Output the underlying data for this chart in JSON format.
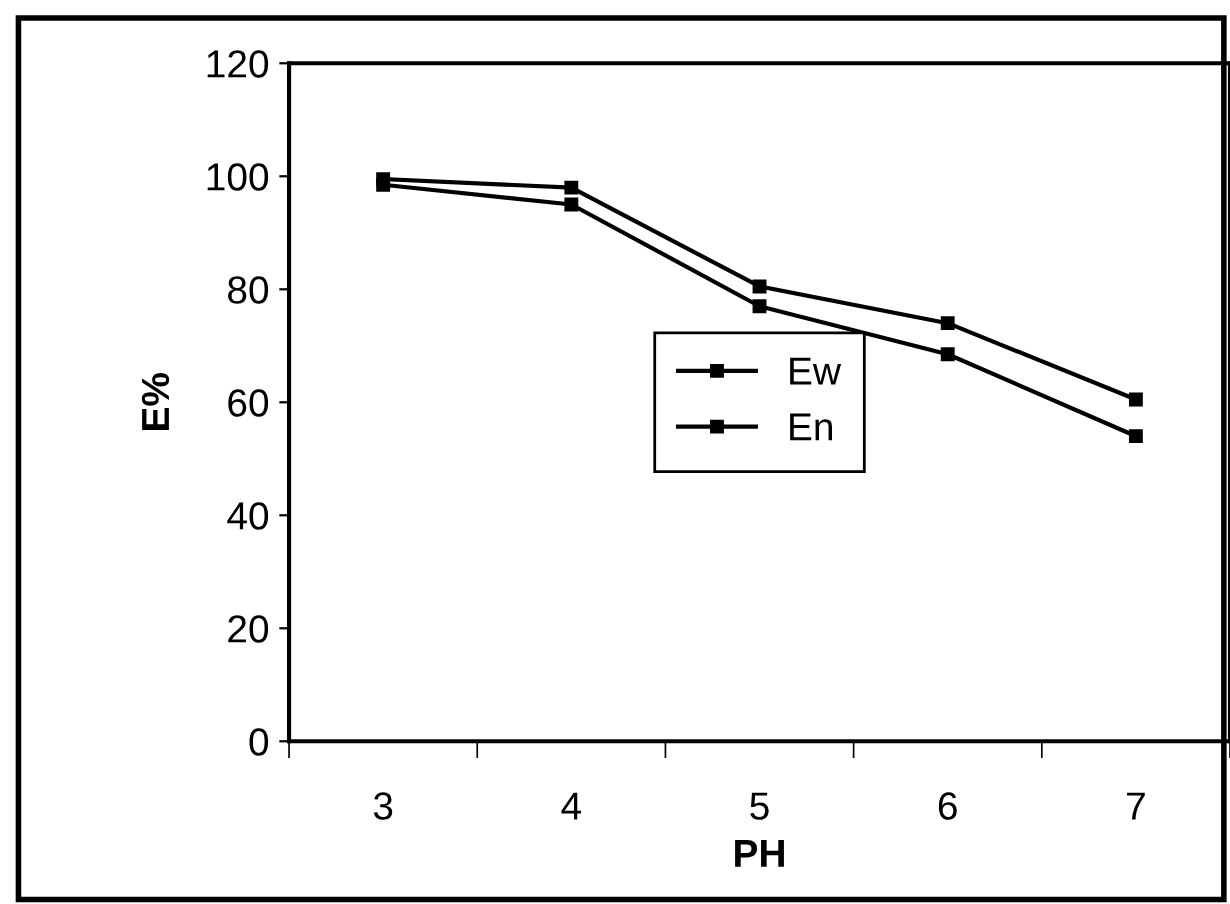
{
  "chart_data": {
    "type": "line",
    "xlabel": "PH",
    "ylabel": "E%",
    "categories": [
      "3",
      "4",
      "5",
      "6",
      "7"
    ],
    "series": [
      {
        "name": "Ew",
        "color": "#000000",
        "values": [
          99.5,
          98,
          80.5,
          74,
          60.5
        ]
      },
      {
        "name": "En",
        "color": "#000000",
        "values": [
          98.5,
          95,
          77,
          68.5,
          54
        ]
      }
    ],
    "ylim": [
      0,
      120
    ],
    "yticks": [
      0,
      20,
      40,
      60,
      80,
      100,
      120
    ],
    "marker": "square",
    "line_style": "solid",
    "grid": false,
    "legend": "center"
  }
}
